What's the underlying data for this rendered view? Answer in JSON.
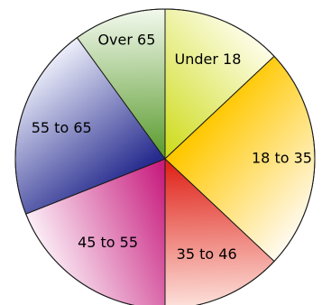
{
  "chart_data": {
    "type": "pie",
    "title": "",
    "legend": "none",
    "start_angle_deg": 0,
    "direction": "clockwise",
    "slices": [
      {
        "label": "Under 18",
        "value": 13,
        "color_start": "#cfdc1f",
        "color_end": "#fdfde8"
      },
      {
        "label": "18 to 35",
        "value": 24,
        "color_start": "#ffc800",
        "color_end": "#fffaf0"
      },
      {
        "label": "35 to 46",
        "value": 13,
        "color_start": "#e0261c",
        "color_end": "#fde2dc"
      },
      {
        "label": "45 to 55",
        "value": 19,
        "color_start": "#c81e7f",
        "color_end": "#fbeef6"
      },
      {
        "label": "55 to 65",
        "value": 21,
        "color_start": "#262b8e",
        "color_end": "#eceefa"
      },
      {
        "label": "Over 65",
        "value": 10,
        "color_start": "#5f9e34",
        "color_end": "#f3f9ed"
      }
    ]
  }
}
